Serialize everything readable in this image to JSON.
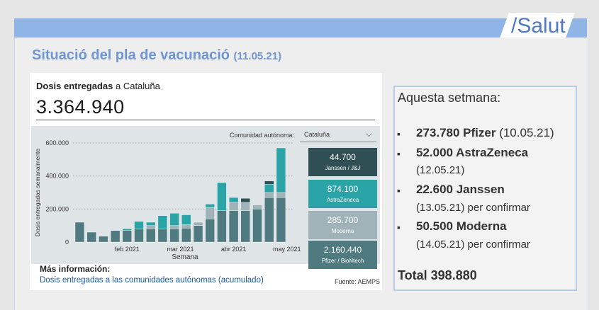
{
  "brand": "/Salut",
  "title": {
    "text": "Situació del pla de vacunació",
    "date": "(11.05.21)"
  },
  "dosis": {
    "label_bold": "Dosis entregadas",
    "label_rest": " a Cataluña",
    "total": "3.364.940"
  },
  "filter": {
    "label": "Comunidad autónoma:",
    "value": "Cataluña"
  },
  "legend": [
    {
      "value": "44.700",
      "name": "Janssen / J&J",
      "color": "#2f4f55"
    },
    {
      "value": "874.100",
      "name": "AstraZeneca",
      "color": "#2aa4a6"
    },
    {
      "value": "285.700",
      "name": "Moderna",
      "color": "#9fb3b8"
    },
    {
      "value": "2.160.440",
      "name": "Pfizer / BioNtech",
      "color": "#4f7a80"
    }
  ],
  "footer": {
    "more_info": "Más información:",
    "link": "Dosis entregadas a las comunidades autónomas (acumulado)",
    "source": "Fuente: AEMPS"
  },
  "side": {
    "heading": "Aquesta setmana:",
    "bullet": "▪",
    "items": [
      {
        "amount": "273.780 Pfizer",
        "date": " (10.05.21)"
      },
      {
        "amount": "52.000  AstraZeneca",
        "date": "(12.05.21)"
      },
      {
        "amount": "22.600 Janssen",
        "date": "(13.05.21) per confirmar"
      },
      {
        "amount": "50.500 Moderna",
        "date": "(14.05.21) per confirmar"
      }
    ],
    "total": "Total 398.880"
  },
  "chart_data": {
    "type": "bar",
    "stacked": true,
    "ylabel": "Dosis entregadas semanalmente",
    "xlabel": "Semana",
    "ylim": [
      0,
      600000
    ],
    "y_ticks": [
      0,
      200000,
      400000,
      600000
    ],
    "y_tick_labels": [
      "0",
      "200.000",
      "400.000",
      "600.000"
    ],
    "x_ticks": [
      {
        "label": "feb 2021",
        "at_bar": 4
      },
      {
        "label": "mar 2021",
        "at_bar": 8.5
      },
      {
        "label": "abr 2021",
        "at_bar": 13
      },
      {
        "label": "may 2021",
        "at_bar": 17.5
      }
    ],
    "grid": "horizontal-dotted",
    "series": [
      {
        "name": "Pfizer / BioNtech",
        "color": "#4f7a80",
        "values": [
          120000,
          60000,
          35000,
          70000,
          70000,
          80000,
          80000,
          80000,
          80000,
          85000,
          100000,
          140000,
          190000,
          190000,
          190000,
          200000,
          270000,
          270000
        ]
      },
      {
        "name": "Moderna",
        "color": "#9fb3b8",
        "values": [
          0,
          0,
          0,
          0,
          0,
          0,
          20000,
          0,
          20000,
          20000,
          20000,
          70000,
          0,
          50000,
          50000,
          25000,
          30000,
          30000
        ]
      },
      {
        "name": "AstraZeneca",
        "color": "#2aa4a6",
        "values": [
          0,
          0,
          0,
          0,
          10000,
          45000,
          20000,
          80000,
          75000,
          60000,
          0,
          20000,
          170000,
          30000,
          0,
          0,
          50000,
          270000
        ]
      },
      {
        "name": "Janssen / J&J",
        "color": "#2f4f55",
        "values": [
          0,
          0,
          0,
          0,
          0,
          0,
          0,
          0,
          0,
          0,
          0,
          0,
          0,
          0,
          25000,
          0,
          20000,
          0
        ]
      }
    ]
  }
}
